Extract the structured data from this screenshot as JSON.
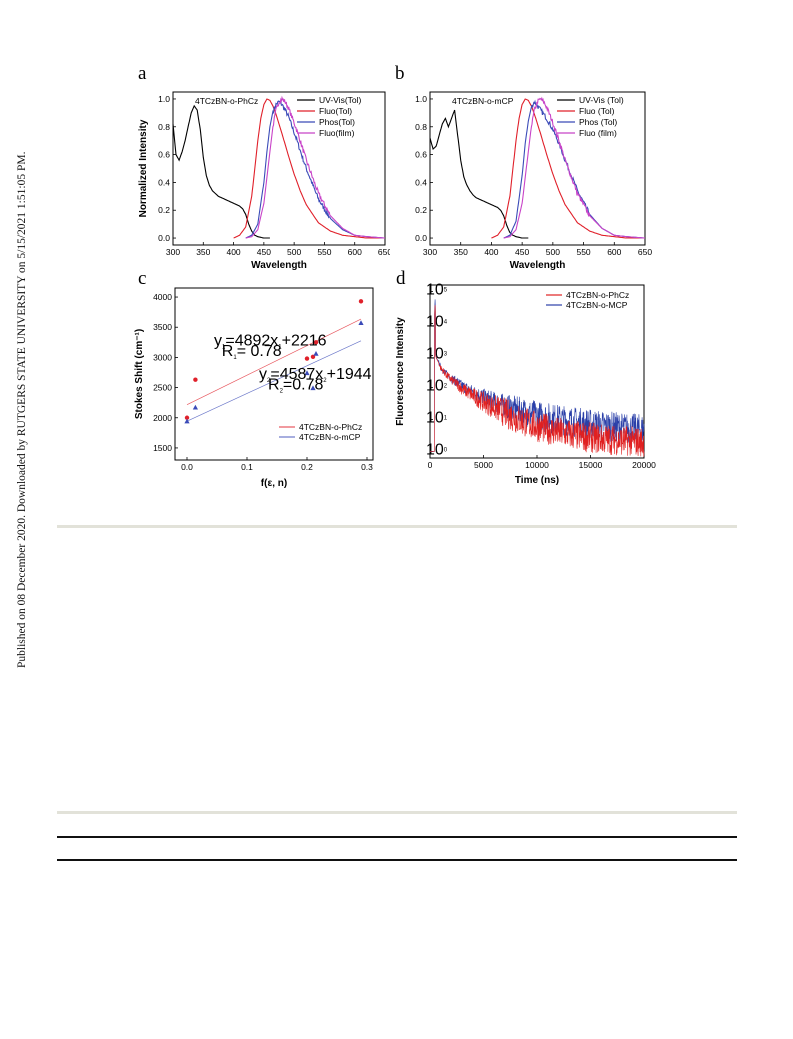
{
  "sidebar": {
    "citation": "Published on 08 December 2020. Downloaded by RUTGERS STATE UNIVERSITY on 5/15/2021 1:51:05 PM."
  },
  "chart_data": [
    {
      "panel": "a",
      "type": "line",
      "annotation": "4TCzBN-o-PhCz",
      "xlabel": "Wavelength",
      "ylabel": "Normalized Intensity",
      "xlim": [
        300,
        650
      ],
      "ylim": [
        -0.05,
        1.05
      ],
      "xticks": [
        300,
        350,
        400,
        450,
        500,
        550,
        600,
        650
      ],
      "yticks": [
        0.0,
        0.2,
        0.4,
        0.6,
        0.8,
        1.0
      ],
      "legend_position": "top-right",
      "series": [
        {
          "name": "UV-Vis(Tol)",
          "color": "#000000",
          "x": [
            300,
            305,
            310,
            315,
            320,
            325,
            330,
            335,
            340,
            345,
            350,
            355,
            360,
            365,
            370,
            375,
            380,
            385,
            390,
            395,
            400,
            405,
            410,
            415,
            420,
            425,
            430,
            435,
            440,
            450,
            460
          ],
          "y": [
            0.82,
            0.6,
            0.56,
            0.62,
            0.7,
            0.8,
            0.9,
            0.95,
            0.92,
            0.78,
            0.58,
            0.45,
            0.38,
            0.34,
            0.32,
            0.3,
            0.29,
            0.28,
            0.27,
            0.26,
            0.25,
            0.24,
            0.23,
            0.21,
            0.17,
            0.1,
            0.05,
            0.02,
            0.01,
            0.0,
            0.0
          ]
        },
        {
          "name": "Fluo(Tol)",
          "color": "#e0202a",
          "x": [
            400,
            410,
            420,
            430,
            435,
            440,
            445,
            450,
            455,
            460,
            465,
            470,
            480,
            490,
            500,
            510,
            520,
            540,
            560,
            580,
            600,
            620,
            650
          ],
          "y": [
            0.0,
            0.02,
            0.08,
            0.3,
            0.5,
            0.7,
            0.86,
            0.96,
            1.0,
            0.99,
            0.95,
            0.89,
            0.75,
            0.6,
            0.46,
            0.34,
            0.24,
            0.11,
            0.05,
            0.02,
            0.01,
            0.0,
            0.0
          ]
        },
        {
          "name": "Phos(Tol)",
          "color": "#3b4bb8",
          "x": [
            420,
            430,
            440,
            450,
            455,
            460,
            465,
            470,
            475,
            480,
            490,
            500,
            510,
            520,
            540,
            560,
            580,
            600,
            620,
            650
          ],
          "y": [
            0.0,
            0.02,
            0.1,
            0.4,
            0.62,
            0.8,
            0.91,
            0.96,
            0.98,
            0.96,
            0.88,
            0.76,
            0.63,
            0.5,
            0.28,
            0.14,
            0.06,
            0.02,
            0.01,
            0.0
          ]
        },
        {
          "name": "Fluo(film)",
          "color": "#c843c8",
          "x": [
            420,
            430,
            440,
            450,
            460,
            465,
            470,
            475,
            480,
            485,
            490,
            500,
            510,
            520,
            540,
            560,
            580,
            600,
            620,
            650
          ],
          "y": [
            0.0,
            0.01,
            0.06,
            0.25,
            0.62,
            0.8,
            0.92,
            0.98,
            1.0,
            0.98,
            0.94,
            0.83,
            0.7,
            0.56,
            0.32,
            0.16,
            0.07,
            0.02,
            0.01,
            0.0
          ]
        }
      ]
    },
    {
      "panel": "b",
      "type": "line",
      "annotation": "4TCzBN-o-mCP",
      "xlabel": "Wavelength",
      "ylabel": "",
      "xlim": [
        300,
        650
      ],
      "ylim": [
        -0.05,
        1.05
      ],
      "xticks": [
        300,
        350,
        400,
        450,
        500,
        550,
        600,
        650
      ],
      "yticks": [
        0.0,
        0.2,
        0.4,
        0.6,
        0.8,
        1.0
      ],
      "legend_position": "top-right",
      "series": [
        {
          "name": "UV-Vis (Tol)",
          "color": "#000000",
          "x": [
            300,
            305,
            310,
            315,
            320,
            325,
            330,
            335,
            340,
            345,
            350,
            355,
            360,
            365,
            370,
            375,
            380,
            385,
            390,
            395,
            400,
            405,
            410,
            415,
            420,
            425,
            430,
            435,
            440,
            450,
            460
          ],
          "y": [
            0.72,
            0.64,
            0.66,
            0.74,
            0.82,
            0.86,
            0.8,
            0.86,
            0.92,
            0.74,
            0.56,
            0.44,
            0.38,
            0.34,
            0.31,
            0.29,
            0.28,
            0.27,
            0.26,
            0.25,
            0.24,
            0.23,
            0.22,
            0.2,
            0.16,
            0.09,
            0.04,
            0.02,
            0.01,
            0.0,
            0.0
          ]
        },
        {
          "name": "Fluo (Tol)",
          "color": "#e0202a",
          "x": [
            400,
            410,
            420,
            430,
            435,
            440,
            445,
            450,
            455,
            460,
            465,
            470,
            480,
            490,
            500,
            510,
            520,
            540,
            560,
            580,
            600,
            620,
            650
          ],
          "y": [
            0.0,
            0.02,
            0.08,
            0.3,
            0.5,
            0.7,
            0.86,
            0.96,
            1.0,
            0.99,
            0.95,
            0.89,
            0.75,
            0.6,
            0.46,
            0.34,
            0.24,
            0.11,
            0.05,
            0.02,
            0.01,
            0.0,
            0.0
          ]
        },
        {
          "name": "Phos (Tol)",
          "color": "#3b4bb8",
          "x": [
            420,
            430,
            440,
            450,
            455,
            460,
            465,
            470,
            475,
            480,
            490,
            500,
            510,
            520,
            540,
            560,
            580,
            600,
            620,
            650
          ],
          "y": [
            0.0,
            0.02,
            0.12,
            0.45,
            0.68,
            0.84,
            0.94,
            0.98,
            0.95,
            0.92,
            0.86,
            0.78,
            0.68,
            0.56,
            0.34,
            0.17,
            0.07,
            0.02,
            0.01,
            0.0
          ]
        },
        {
          "name": "Fluo (film)",
          "color": "#c843c8",
          "x": [
            420,
            430,
            440,
            450,
            460,
            465,
            470,
            475,
            480,
            485,
            490,
            500,
            510,
            520,
            540,
            560,
            580,
            600,
            620,
            650
          ],
          "y": [
            0.0,
            0.01,
            0.06,
            0.25,
            0.62,
            0.8,
            0.92,
            0.98,
            1.0,
            0.98,
            0.94,
            0.83,
            0.7,
            0.56,
            0.32,
            0.16,
            0.07,
            0.02,
            0.01,
            0.0
          ]
        }
      ]
    },
    {
      "panel": "c",
      "type": "scatter",
      "xlabel": "f(ε, n)",
      "ylabel": "Stokes Shift (cm⁻¹)",
      "xlim": [
        -0.02,
        0.31
      ],
      "ylim": [
        1300,
        4150
      ],
      "xticks": [
        0.0,
        0.1,
        0.2,
        0.3
      ],
      "xtick_labels": [
        "0.0",
        "0.1",
        "0.2",
        "0.3"
      ],
      "yticks": [
        1500,
        2000,
        2500,
        3000,
        3500,
        4000
      ],
      "legend_position": "bottom-right",
      "annotations": [
        "y₁=4892x₁+2216",
        "R₁= 0.78",
        "y₂=4587x₂+1944",
        "R₂=0.78"
      ],
      "series": [
        {
          "name": "4TCzBN-o-PhCz",
          "color": "#e0202a",
          "marker": "circle",
          "x": [
            0.0,
            0.014,
            0.2,
            0.21,
            0.215,
            0.29
          ],
          "y": [
            2000,
            2630,
            2980,
            3010,
            3250,
            3930
          ],
          "fit": {
            "slope": 4892,
            "intercept": 2216
          }
        },
        {
          "name": "4TCzBN-o-mCP",
          "color": "#3b4bb8",
          "marker": "triangle",
          "x": [
            0.0,
            0.014,
            0.2,
            0.21,
            0.215,
            0.29
          ],
          "y": [
            1940,
            2170,
            2740,
            2490,
            3060,
            3570
          ],
          "fit": {
            "slope": 4587,
            "intercept": 1944
          }
        }
      ]
    },
    {
      "panel": "d",
      "type": "line",
      "xlabel": "Time (ns)",
      "ylabel": "Fluorescence Intensity",
      "xlim": [
        0,
        20000
      ],
      "ylim_log10": [
        -0.2,
        5.2
      ],
      "log_y": true,
      "xticks": [
        0,
        5000,
        10000,
        15000,
        20000
      ],
      "ytick_exponents": [
        0,
        1,
        2,
        3,
        4,
        5
      ],
      "legend_position": "top-right",
      "series": [
        {
          "name": "4TCzBN-o-PhCz",
          "color": "#e02020",
          "x": [
            0,
            400,
            480,
            520,
            600,
            1000,
            1500,
            2000,
            3000,
            4000,
            5000,
            6000,
            7000,
            8000,
            9000,
            10000,
            12000,
            14000,
            16000,
            18000,
            20000
          ],
          "y": [
            1.0,
            1.0,
            40000,
            1000,
            800,
            400,
            250,
            170,
            90,
            55,
            35,
            24,
            16,
            11,
            8,
            6,
            4,
            3,
            2.5,
            2.2,
            2.0
          ]
        },
        {
          "name": "4TCzBN-o-MCP",
          "color": "#2a3fa8",
          "x": [
            0,
            400,
            480,
            520,
            600,
            1000,
            1500,
            2000,
            3000,
            4000,
            5000,
            6000,
            7000,
            8000,
            9000,
            10000,
            12000,
            14000,
            16000,
            18000,
            20000
          ],
          "y": [
            1.0,
            1.0,
            60000,
            1100,
            850,
            420,
            270,
            190,
            110,
            72,
            50,
            36,
            27,
            21,
            16,
            13,
            10,
            8,
            6.5,
            5.5,
            5.0
          ]
        }
      ]
    }
  ]
}
